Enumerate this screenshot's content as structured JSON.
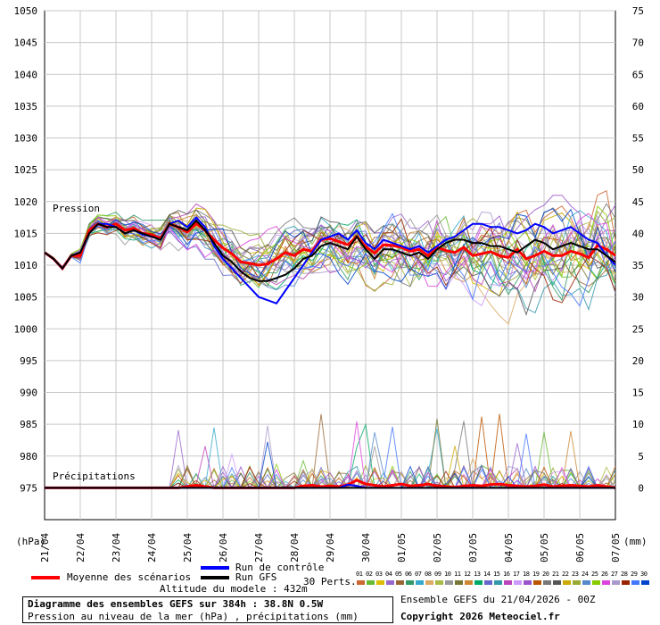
{
  "chart_data": {
    "type": "line",
    "title": "Diagramme des ensembles GEFS sur 384h : 38.8N 0.5W",
    "subtitle": "Pression au niveau de la mer (hPa) , précipitations (mm)",
    "left_axis": {
      "unit": "(hPa)",
      "ticks": [
        975,
        980,
        985,
        990,
        995,
        1000,
        1005,
        1010,
        1015,
        1020,
        1025,
        1030,
        1035,
        1040,
        1045,
        1050
      ],
      "range": [
        970,
        1050
      ]
    },
    "right_axis": {
      "unit": "(mm)",
      "ticks": [
        0,
        5,
        10,
        15,
        20,
        25,
        30,
        35,
        40,
        45,
        50,
        55,
        60,
        65,
        70,
        75
      ],
      "range": [
        -5,
        75
      ]
    },
    "x_labels": [
      "21/04",
      "22/04",
      "23/04",
      "24/04",
      "25/04",
      "26/04",
      "27/04",
      "28/04",
      "29/04",
      "30/04",
      "01/05",
      "02/05",
      "03/05",
      "04/05",
      "05/05",
      "06/05",
      "07/05"
    ],
    "grid": true,
    "annotations": {
      "pressure": "Pression",
      "precip": "Précipitations"
    },
    "series": [
      {
        "name": "Moyenne des scénarios",
        "kind": "pressure",
        "color": "#ff0000",
        "values": [
          1012.0,
          1011,
          1009.5,
          1011.5,
          1011.5,
          1015.5,
          1016.5,
          1016,
          1016.5,
          1015.5,
          1015.8,
          1015,
          1014.8,
          1014.2,
          1016.5,
          1016,
          1015.2,
          1016.5,
          1015.5,
          1014,
          1012.7,
          1011.8,
          1010.5,
          1010.3,
          1010,
          1010.2,
          1011,
          1012,
          1011.5,
          1012.5,
          1012.2,
          1014,
          1014.2,
          1013.7,
          1013.2,
          1014.5,
          1012.9,
          1011.9,
          1013.2,
          1013.1,
          1012.8,
          1012.2,
          1012.5,
          1011.5,
          1012.8,
          1012.3,
          1012,
          1012.8,
          1011.5,
          1011.8,
          1012.1,
          1011.5,
          1011.2,
          1012.5,
          1011,
          1011.5,
          1012.2,
          1011.5,
          1011.5,
          1012.2,
          1011.8,
          1011.2,
          1013.1,
          1012.5,
          1011.5
        ]
      },
      {
        "name": "Run de contrôle",
        "kind": "pressure",
        "color": "#0000ff",
        "values": [
          1012,
          1011,
          1009.5,
          1011.5,
          1012,
          1015,
          1016.5,
          1016.5,
          1016,
          1015,
          1015.5,
          1014.8,
          1014.5,
          1014,
          1016.5,
          1017,
          1016,
          1017.5,
          1016,
          1013,
          1011,
          1009.5,
          1008,
          1006.5,
          1005,
          1004.5,
          1004,
          1006,
          1008,
          1010,
          1012,
          1014,
          1014.5,
          1015,
          1014,
          1015.5,
          1013.5,
          1012.5,
          1014,
          1013.5,
          1013,
          1012.5,
          1013,
          1012,
          1013,
          1014,
          1014.5,
          1015.5,
          1016.5,
          1016.5,
          1016,
          1016,
          1015.5,
          1015,
          1015.5,
          1016.5,
          1016,
          1015,
          1015.5,
          1016,
          1015,
          1014,
          1013.5,
          1011.5,
          1010
        ]
      },
      {
        "name": "Run GFS",
        "kind": "pressure",
        "color": "#000000",
        "values": [
          1012,
          1011,
          1009.5,
          1011.5,
          1012,
          1015,
          1016.5,
          1016,
          1016,
          1015,
          1015.5,
          1015,
          1014.5,
          1014,
          1016.5,
          1016,
          1015.5,
          1017,
          1015.5,
          1013.5,
          1011.5,
          1010.5,
          1009,
          1008,
          1007.5,
          1007.5,
          1008,
          1008.5,
          1009.5,
          1011,
          1011.5,
          1013,
          1013.5,
          1013,
          1012.5,
          1014.5,
          1012.5,
          1011,
          1012.5,
          1012.5,
          1012,
          1011.5,
          1012,
          1011,
          1012.5,
          1013.5,
          1014,
          1014,
          1013.5,
          1013.5,
          1013,
          1013,
          1012.5,
          1012,
          1013,
          1014,
          1013.5,
          1012.5,
          1013,
          1013.5,
          1013,
          1012.5,
          1012.5,
          1011.5,
          1010.5
        ]
      },
      {
        "name": "Moyenne des scénarios",
        "kind": "precip",
        "color": "#ff0000",
        "values": [
          0,
          0,
          0,
          0,
          0,
          0,
          0,
          0,
          0,
          0,
          0,
          0,
          0,
          0,
          0,
          0,
          0.2,
          0.4,
          0.2,
          0,
          0,
          0,
          0,
          0,
          0,
          0,
          0,
          0,
          0,
          0.3,
          0.4,
          0.2,
          0.3,
          0.2,
          0.5,
          1.2,
          0.6,
          0.4,
          0.2,
          0.4,
          0.6,
          0.3,
          0.4,
          0.6,
          0.3,
          0.2,
          0.1,
          0.3,
          0.4,
          0.3,
          0.5,
          0.6,
          0.4,
          0.3,
          0.2,
          0.3,
          0.5,
          0.2,
          0.3,
          0.4,
          0.3,
          0.2,
          0.4,
          0.2,
          0
        ]
      },
      {
        "name": "Run de contrôle",
        "kind": "precip",
        "color": "#0000ff",
        "values": [
          0,
          0,
          0,
          0,
          0,
          0,
          0,
          0,
          0,
          0,
          0,
          0,
          0,
          0,
          0,
          0,
          0,
          0,
          0,
          0,
          0,
          0,
          0,
          0,
          0,
          0,
          0,
          0,
          0,
          0,
          0,
          0,
          0,
          0,
          0.5,
          0.3,
          0,
          0,
          0,
          0,
          0,
          0,
          0,
          0,
          0,
          0,
          0,
          0,
          0,
          0,
          0,
          0,
          0,
          0,
          0,
          0,
          0,
          0,
          0,
          0,
          0,
          0,
          0,
          0,
          0
        ]
      },
      {
        "name": "Run GFS",
        "kind": "precip",
        "color": "#000000",
        "values": [
          0,
          0,
          0,
          0,
          0,
          0,
          0,
          0,
          0,
          0,
          0,
          0,
          0,
          0,
          0,
          0,
          0,
          0,
          0,
          0,
          0,
          0,
          0,
          0,
          0,
          0,
          0,
          0,
          0,
          0,
          0,
          0,
          0,
          0,
          0,
          0,
          0,
          0,
          0,
          0,
          0,
          0,
          0,
          0,
          0,
          0,
          0,
          0,
          0,
          0,
          0,
          0,
          0,
          0,
          0,
          0,
          0,
          0,
          0,
          0,
          0,
          0,
          0,
          0,
          0
        ]
      }
    ]
  },
  "legend": {
    "mean_label": "Moyenne des scénarios",
    "control_label": "Run de contrôle",
    "gfs_label": "Run GFS",
    "perts_label": "30 Perts.",
    "perts_numbers": [
      "01",
      "02",
      "03",
      "04",
      "05",
      "06",
      "07",
      "08",
      "09",
      "10",
      "11",
      "12",
      "13",
      "14",
      "15",
      "16",
      "17",
      "18",
      "19",
      "20",
      "21",
      "22",
      "23",
      "24",
      "25",
      "26",
      "27",
      "28",
      "29",
      "30"
    ],
    "perts_colors": [
      "#cc6633",
      "#66bb33",
      "#ddbb00",
      "#9966cc",
      "#996633",
      "#339966",
      "#33aacc",
      "#ddaa66",
      "#aabb44",
      "#999999",
      "#777733",
      "#cc8833",
      "#00aa66",
      "#6666cc",
      "#3399aa",
      "#bb44bb",
      "#cc99ff",
      "#9955cc",
      "#bb5500",
      "#777777",
      "#555555",
      "#ccaa00",
      "#99aa33",
      "#5588cc",
      "#88cc00",
      "#dd44dd",
      "#aa99cc",
      "#992200",
      "#4477ff",
      "#0044cc"
    ],
    "model_altitude": "Altitude du modele : 432m"
  },
  "footer": {
    "run_info": "Ensemble GEFS du 21/04/2026 - 00Z",
    "copyright": "Copyright 2026 Meteociel.fr"
  }
}
